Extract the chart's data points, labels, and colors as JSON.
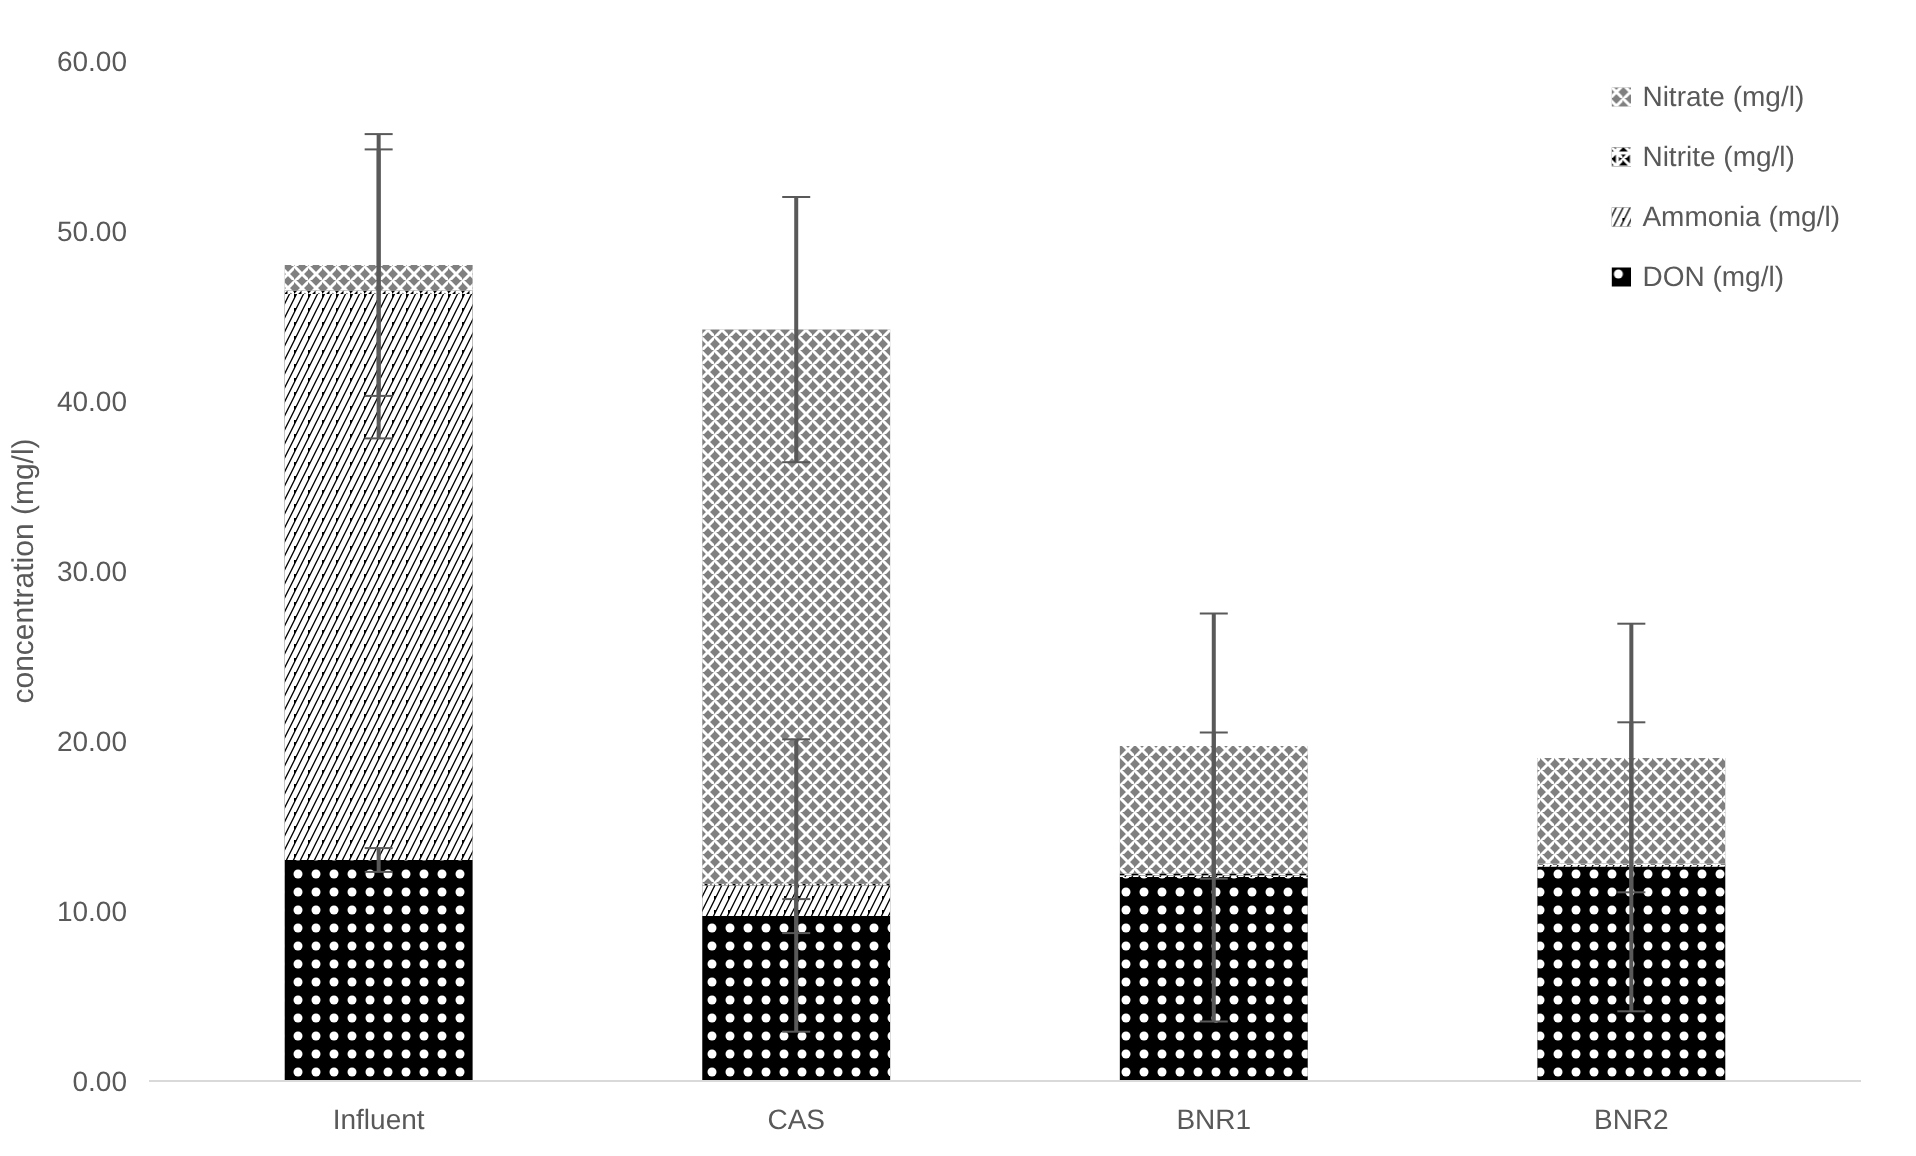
{
  "chart_data": {
    "type": "bar",
    "stacked": true,
    "ylabel": "concentration (mg/l)",
    "categories": [
      "Influent",
      "CAS",
      "BNR1",
      "BNR2"
    ],
    "series": [
      {
        "name": "DON (mg/l)",
        "color": "#000000",
        "values": [
          13.0,
          9.7,
          12.0,
          12.6
        ],
        "errors": [
          0.7,
          1.0,
          8.5,
          8.5
        ]
      },
      {
        "name": "Ammonia (mg/l)",
        "color": "#000000",
        "values": [
          33.3,
          1.8,
          0.1,
          0.1
        ],
        "errors": [
          8.5,
          8.6,
          null,
          null
        ]
      },
      {
        "name": "Nitrite (mg/l)",
        "color": "#000000",
        "values": [
          0.2,
          0.1,
          0.1,
          0.1
        ],
        "errors": [
          null,
          null,
          null,
          null
        ]
      },
      {
        "name": "Nitrate (mg/l)",
        "color": "#808080",
        "values": [
          1.5,
          32.6,
          7.5,
          6.2
        ],
        "errors": [
          7.7,
          7.8,
          7.8,
          7.9
        ]
      }
    ],
    "ylim": [
      0,
      60
    ],
    "yticks": [
      {
        "value": 0,
        "label": "0.00"
      },
      {
        "value": 10,
        "label": "10.00"
      },
      {
        "value": 20,
        "label": "20.00"
      },
      {
        "value": 30,
        "label": "30.00"
      },
      {
        "value": 40,
        "label": "40.00"
      },
      {
        "value": 50,
        "label": "50.00"
      },
      {
        "value": 60,
        "label": "60.00"
      }
    ],
    "grid": false,
    "legend": "top right"
  }
}
